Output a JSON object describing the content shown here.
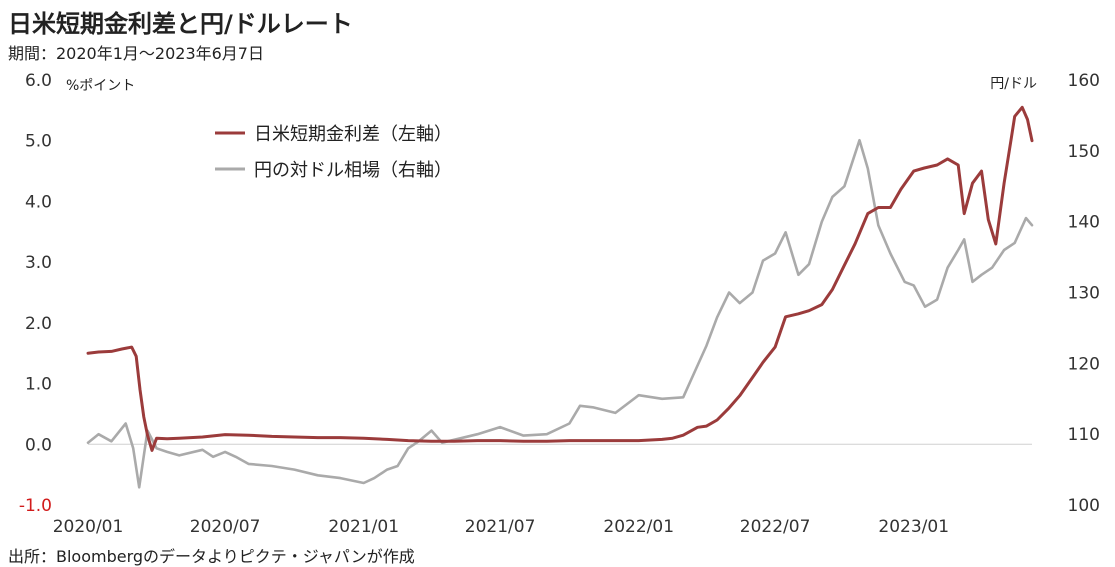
{
  "header": {
    "title": "日米短期金利差と円/ドルレート",
    "subtitle": "期間：2020年1月～2023年6月7日"
  },
  "footer": {
    "source": "出所：Bloombergのデータよりピクテ・ジャパンが作成"
  },
  "chart_data": {
    "type": "line",
    "left_axis": {
      "unit": "%ポイント",
      "ylim": [
        -1.0,
        6.0
      ],
      "ticks": [
        "6.0",
        "5.0",
        "4.0",
        "3.0",
        "2.0",
        "1.0",
        "0.0",
        "-1.0"
      ],
      "tick_values": [
        6,
        5,
        4,
        3,
        2,
        1,
        0,
        -1
      ]
    },
    "right_axis": {
      "unit": "円/ドル",
      "ylim": [
        100,
        160
      ],
      "ticks": [
        "160",
        "150",
        "140",
        "130",
        "120",
        "110",
        "100"
      ],
      "tick_values": [
        160,
        150,
        140,
        130,
        120,
        110,
        100
      ]
    },
    "x_axis": {
      "range": [
        "2020-01-01",
        "2023-06-07"
      ],
      "ticks": [
        "2020/01",
        "2020/07",
        "2021/01",
        "2021/07",
        "2022/01",
        "2022/07",
        "2023/01"
      ],
      "tick_dates": [
        "2020-01-01",
        "2020-07-01",
        "2021-01-01",
        "2021-07-01",
        "2022-01-01",
        "2022-07-01",
        "2023-01-01"
      ]
    },
    "colors": {
      "spread": "#9b3b3b",
      "usdjpy": "#aaaaaa",
      "zero_line": "#d0d0d0",
      "negative_tick": "#d11b1b"
    },
    "legend": {
      "placement": "top-left"
    },
    "series": [
      {
        "name": "日米短期金利差（左軸）",
        "axis": "left",
        "points": [
          [
            "2020-01-01",
            1.5
          ],
          [
            "2020-01-15",
            1.52
          ],
          [
            "2020-02-01",
            1.53
          ],
          [
            "2020-02-15",
            1.57
          ],
          [
            "2020-02-28",
            1.6
          ],
          [
            "2020-03-05",
            1.45
          ],
          [
            "2020-03-10",
            0.9
          ],
          [
            "2020-03-15",
            0.45
          ],
          [
            "2020-03-20",
            0.15
          ],
          [
            "2020-03-26",
            -0.1
          ],
          [
            "2020-04-01",
            0.1
          ],
          [
            "2020-04-15",
            0.09
          ],
          [
            "2020-05-01",
            0.1
          ],
          [
            "2020-06-01",
            0.12
          ],
          [
            "2020-07-01",
            0.16
          ],
          [
            "2020-08-01",
            0.15
          ],
          [
            "2020-09-01",
            0.13
          ],
          [
            "2020-10-01",
            0.12
          ],
          [
            "2020-11-01",
            0.11
          ],
          [
            "2020-12-01",
            0.11
          ],
          [
            "2021-01-01",
            0.1
          ],
          [
            "2021-02-01",
            0.08
          ],
          [
            "2021-03-01",
            0.06
          ],
          [
            "2021-04-01",
            0.05
          ],
          [
            "2021-05-01",
            0.05
          ],
          [
            "2021-06-01",
            0.06
          ],
          [
            "2021-07-01",
            0.06
          ],
          [
            "2021-08-01",
            0.05
          ],
          [
            "2021-09-01",
            0.05
          ],
          [
            "2021-10-01",
            0.06
          ],
          [
            "2021-11-01",
            0.06
          ],
          [
            "2021-12-01",
            0.06
          ],
          [
            "2022-01-01",
            0.06
          ],
          [
            "2022-02-01",
            0.08
          ],
          [
            "2022-02-15",
            0.1
          ],
          [
            "2022-03-01",
            0.15
          ],
          [
            "2022-03-20",
            0.28
          ],
          [
            "2022-04-01",
            0.3
          ],
          [
            "2022-04-15",
            0.4
          ],
          [
            "2022-05-01",
            0.6
          ],
          [
            "2022-05-15",
            0.8
          ],
          [
            "2022-06-01",
            1.1
          ],
          [
            "2022-06-15",
            1.35
          ],
          [
            "2022-07-01",
            1.6
          ],
          [
            "2022-07-15",
            2.1
          ],
          [
            "2022-08-01",
            2.15
          ],
          [
            "2022-08-15",
            2.2
          ],
          [
            "2022-09-01",
            2.3
          ],
          [
            "2022-09-15",
            2.55
          ],
          [
            "2022-10-01",
            2.95
          ],
          [
            "2022-10-15",
            3.3
          ],
          [
            "2022-11-01",
            3.8
          ],
          [
            "2022-11-15",
            3.9
          ],
          [
            "2022-12-01",
            3.9
          ],
          [
            "2022-12-15",
            4.2
          ],
          [
            "2023-01-01",
            4.5
          ],
          [
            "2023-01-15",
            4.55
          ],
          [
            "2023-02-01",
            4.6
          ],
          [
            "2023-02-15",
            4.7
          ],
          [
            "2023-03-01",
            4.6
          ],
          [
            "2023-03-09",
            3.8
          ],
          [
            "2023-03-20",
            4.3
          ],
          [
            "2023-04-01",
            4.5
          ],
          [
            "2023-04-10",
            3.7
          ],
          [
            "2023-04-20",
            3.3
          ],
          [
            "2023-05-01",
            4.3
          ],
          [
            "2023-05-10",
            5.0
          ],
          [
            "2023-05-15",
            5.4
          ],
          [
            "2023-05-25",
            5.55
          ],
          [
            "2023-06-01",
            5.35
          ],
          [
            "2023-06-07",
            5.0
          ]
        ]
      },
      {
        "name": "円の対ドル相場（右軸）",
        "axis": "right",
        "points": [
          [
            "2020-01-01",
            108.8
          ],
          [
            "2020-01-15",
            110.0
          ],
          [
            "2020-02-01",
            109.0
          ],
          [
            "2020-02-20",
            111.5
          ],
          [
            "2020-03-01",
            108.0
          ],
          [
            "2020-03-09",
            102.5
          ],
          [
            "2020-03-20",
            110.5
          ],
          [
            "2020-04-01",
            108.0
          ],
          [
            "2020-04-15",
            107.5
          ],
          [
            "2020-05-01",
            107.0
          ],
          [
            "2020-06-01",
            107.8
          ],
          [
            "2020-06-15",
            106.8
          ],
          [
            "2020-07-01",
            107.5
          ],
          [
            "2020-07-15",
            106.8
          ],
          [
            "2020-08-01",
            105.8
          ],
          [
            "2020-09-01",
            105.5
          ],
          [
            "2020-10-01",
            105.0
          ],
          [
            "2020-11-01",
            104.2
          ],
          [
            "2020-12-01",
            103.8
          ],
          [
            "2021-01-01",
            103.1
          ],
          [
            "2021-01-15",
            103.8
          ],
          [
            "2021-02-01",
            105.0
          ],
          [
            "2021-02-15",
            105.5
          ],
          [
            "2021-03-01",
            108.0
          ],
          [
            "2021-03-15",
            109.0
          ],
          [
            "2021-04-01",
            110.5
          ],
          [
            "2021-04-15",
            108.8
          ],
          [
            "2021-05-01",
            109.2
          ],
          [
            "2021-06-01",
            110.0
          ],
          [
            "2021-07-01",
            111.0
          ],
          [
            "2021-08-01",
            109.8
          ],
          [
            "2021-09-01",
            110.0
          ],
          [
            "2021-10-01",
            111.5
          ],
          [
            "2021-10-15",
            114.0
          ],
          [
            "2021-11-01",
            113.8
          ],
          [
            "2021-12-01",
            113.0
          ],
          [
            "2022-01-01",
            115.5
          ],
          [
            "2022-02-01",
            115.0
          ],
          [
            "2022-03-01",
            115.2
          ],
          [
            "2022-03-15",
            118.5
          ],
          [
            "2022-04-01",
            122.5
          ],
          [
            "2022-04-15",
            126.5
          ],
          [
            "2022-05-01",
            130.0
          ],
          [
            "2022-05-15",
            128.5
          ],
          [
            "2022-06-01",
            130.0
          ],
          [
            "2022-06-15",
            134.5
          ],
          [
            "2022-07-01",
            135.5
          ],
          [
            "2022-07-15",
            138.5
          ],
          [
            "2022-08-01",
            132.5
          ],
          [
            "2022-08-15",
            134.0
          ],
          [
            "2022-09-01",
            140.0
          ],
          [
            "2022-09-15",
            143.5
          ],
          [
            "2022-10-01",
            145.0
          ],
          [
            "2022-10-21",
            151.5
          ],
          [
            "2022-11-01",
            147.5
          ],
          [
            "2022-11-15",
            139.5
          ],
          [
            "2022-12-01",
            135.5
          ],
          [
            "2022-12-20",
            131.5
          ],
          [
            "2023-01-01",
            131.0
          ],
          [
            "2023-01-16",
            128.0
          ],
          [
            "2023-02-01",
            129.0
          ],
          [
            "2023-02-15",
            133.5
          ],
          [
            "2023-03-01",
            136.0
          ],
          [
            "2023-03-09",
            137.5
          ],
          [
            "2023-03-20",
            131.5
          ],
          [
            "2023-04-01",
            132.5
          ],
          [
            "2023-04-15",
            133.5
          ],
          [
            "2023-05-01",
            136.0
          ],
          [
            "2023-05-15",
            137.0
          ],
          [
            "2023-05-30",
            140.5
          ],
          [
            "2023-06-07",
            139.5
          ]
        ]
      }
    ]
  }
}
